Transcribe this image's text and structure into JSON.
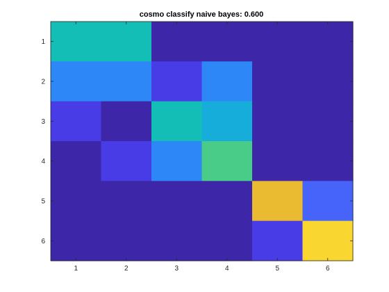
{
  "chart_data": {
    "type": "heatmap",
    "title": "cosmo classify naive bayes: 0.600",
    "xlabel": "",
    "ylabel": "",
    "x_categories": [
      "1",
      "2",
      "3",
      "4",
      "5",
      "6"
    ],
    "y_categories": [
      "1",
      "2",
      "3",
      "4",
      "5",
      "6"
    ],
    "values": [
      [
        0.55,
        0.55,
        0.0,
        0.0,
        0.0,
        0.0
      ],
      [
        0.3,
        0.3,
        0.1,
        0.3,
        0.0,
        0.0
      ],
      [
        0.1,
        0.0,
        0.55,
        0.45,
        0.0,
        0.0
      ],
      [
        0.0,
        0.1,
        0.3,
        0.65,
        0.0,
        0.0
      ],
      [
        0.0,
        0.0,
        0.0,
        0.0,
        0.85,
        0.2
      ],
      [
        0.0,
        0.0,
        0.0,
        0.0,
        0.1,
        1.0
      ]
    ],
    "colormap": "parula",
    "colorscale_range": [
      0,
      1
    ],
    "grid": false,
    "y_direction": "top-to-bottom",
    "colors": {
      "axis": "#262626",
      "background": "#ffffff"
    }
  }
}
